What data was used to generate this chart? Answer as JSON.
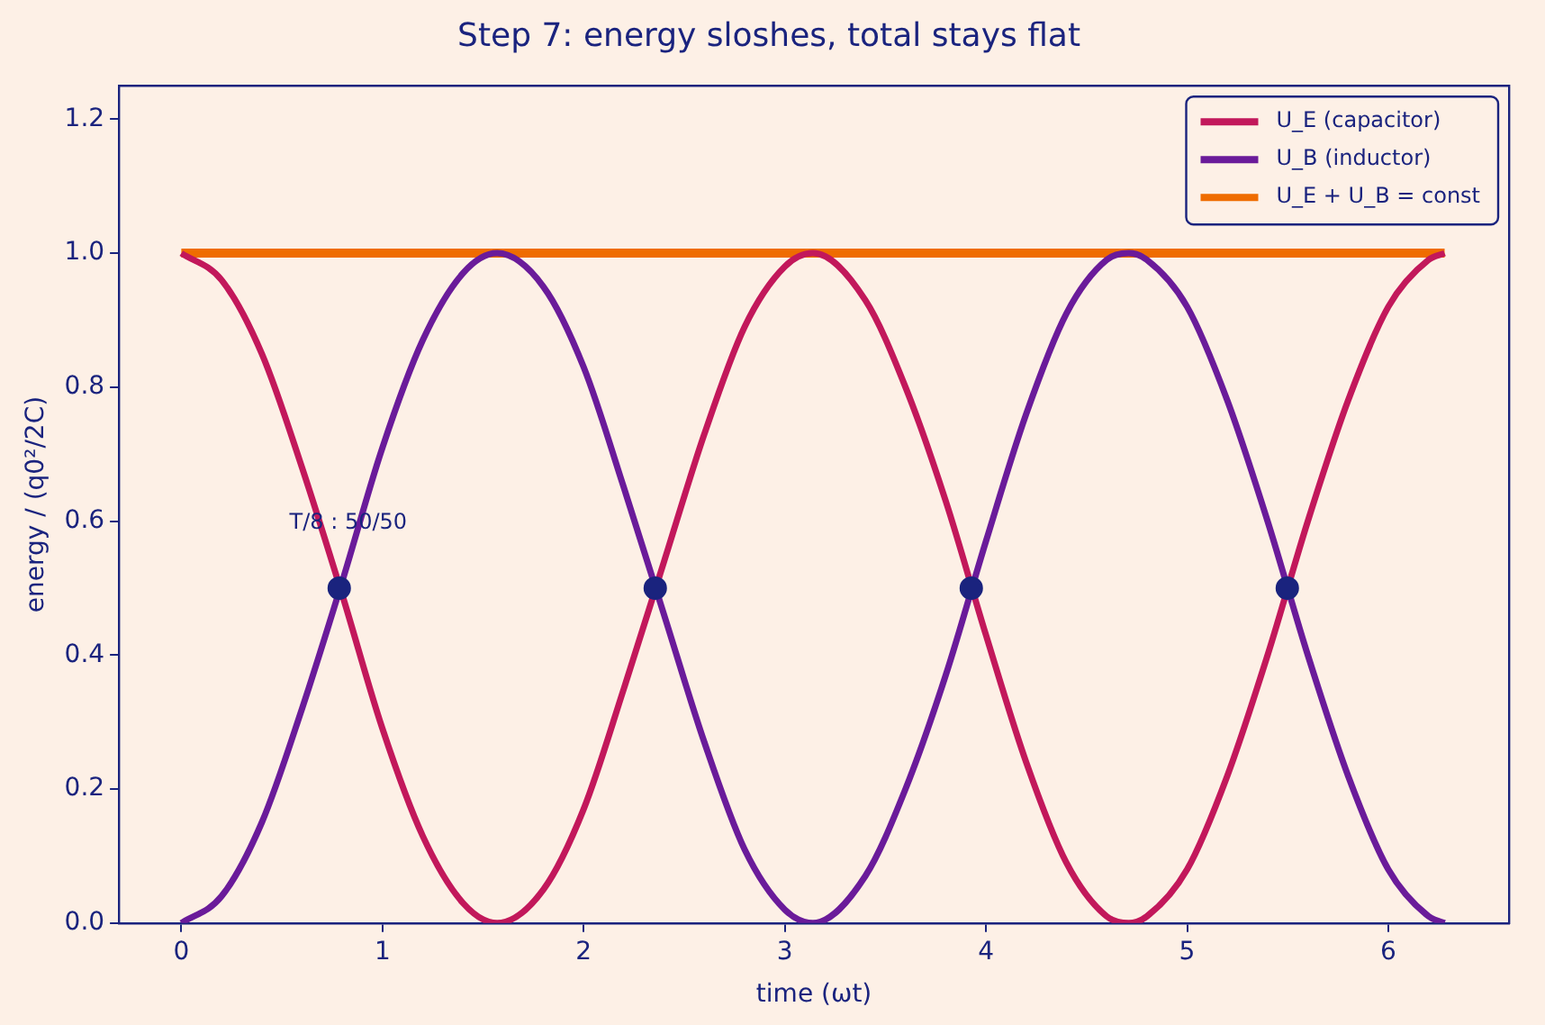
{
  "chart_data": {
    "type": "line",
    "title": "Step 7: energy sloshes, total stays flat",
    "xlabel": "time (ωt)",
    "ylabel": "energy / (q0²/2C)",
    "xlim": [
      -0.31,
      6.6
    ],
    "xticks": [
      0,
      1,
      2,
      3,
      4,
      5,
      6
    ],
    "ylim": [
      0,
      1.25
    ],
    "yticks": [
      {
        "value": 0,
        "label": "0.0"
      },
      0.2,
      0.4,
      0.6,
      0.8,
      {
        "value": 1,
        "label": "1.0"
      },
      1.2
    ],
    "x": [
      0,
      0.2,
      0.4,
      0.6,
      0.8,
      1.0,
      1.2,
      1.4,
      1.57,
      1.8,
      2.0,
      2.2,
      2.4,
      2.6,
      2.8,
      3.0,
      3.14,
      3.4,
      3.6,
      3.8,
      4.0,
      4.2,
      4.4,
      4.6,
      4.71,
      4.8,
      5.0,
      5.2,
      5.4,
      5.6,
      5.8,
      6.0,
      6.2,
      6.28
    ],
    "series": [
      {
        "name": "U_E (capacitor)",
        "color": "#c2185b",
        "values": [
          1.0,
          0.96,
          0.85,
          0.68,
          0.49,
          0.29,
          0.13,
          0.03,
          0.0,
          0.05,
          0.17,
          0.35,
          0.54,
          0.73,
          0.89,
          0.98,
          1.0,
          0.93,
          0.8,
          0.63,
          0.43,
          0.24,
          0.09,
          0.01,
          0.0,
          0.01,
          0.08,
          0.22,
          0.4,
          0.6,
          0.78,
          0.92,
          0.99,
          1.0
        ]
      },
      {
        "name": "U_B (inductor)",
        "color": "#6a1b9a",
        "values": [
          0.0,
          0.04,
          0.15,
          0.32,
          0.51,
          0.71,
          0.87,
          0.97,
          1.0,
          0.95,
          0.83,
          0.65,
          0.46,
          0.27,
          0.11,
          0.02,
          0.0,
          0.07,
          0.2,
          0.37,
          0.57,
          0.76,
          0.91,
          0.99,
          1.0,
          0.99,
          0.92,
          0.78,
          0.6,
          0.4,
          0.22,
          0.08,
          0.01,
          0.0
        ]
      },
      {
        "name": "U_E + U_B = const",
        "color": "#ef6c00",
        "x": [
          0,
          6.28
        ],
        "values": [
          1.0,
          1.0
        ]
      },
      {
        "type": "scatter",
        "marker": "circle",
        "color": "#1a237e",
        "x": [
          0.785,
          2.356,
          3.927,
          5.498
        ],
        "values": [
          0.5,
          0.5,
          0.5,
          0.5
        ]
      }
    ],
    "annotations": [
      "T/8 : 50/50"
    ],
    "legend": "top right",
    "marker": "none",
    "line_style": "solid",
    "grid": false
  }
}
